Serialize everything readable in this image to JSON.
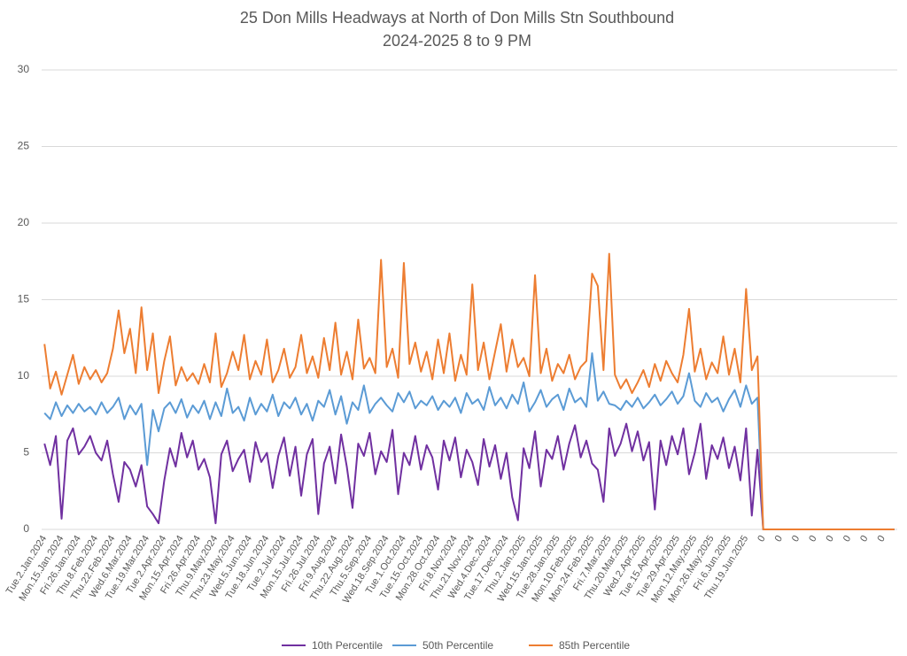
{
  "chart_data": {
    "type": "line",
    "title": "25 Don Mills Headways at North of Don Mills Stn Southbound",
    "subtitle": "2024-2025 8 to 9 PM",
    "categories": [
      "Tue.2.Jan.2024",
      null,
      null,
      "Mon.15.Jan.2024",
      null,
      null,
      "Fri.26.Jan.2024",
      null,
      null,
      "Thu.8.Feb.2024",
      null,
      null,
      "Thu.22.Feb.2024",
      null,
      null,
      "Wed.6.Mar.2024",
      null,
      null,
      "Tue.19.Mar.2024",
      null,
      null,
      "Tue.2.Apr.2024",
      null,
      null,
      "Mon.15.Apr.2024",
      null,
      null,
      "Fri.26.Apr.2024",
      null,
      null,
      "Thu.9.May.2024",
      null,
      null,
      "Thu.23.May.2024",
      null,
      null,
      "Wed.5.Jun.2024",
      null,
      null,
      "Tue.18.Jun.2024",
      null,
      null,
      "Tue.2.Jul.2024",
      null,
      null,
      "Mon.15.Jul.2024",
      null,
      null,
      "Fri.26.Jul.2024",
      null,
      null,
      "Fri.9.Aug.2024",
      null,
      null,
      "Thu.22.Aug.2024",
      null,
      null,
      "Thu.5.Sep.2024",
      null,
      null,
      "Wed.18.Sep.2024",
      null,
      null,
      "Tue.1.Oct.2024",
      null,
      null,
      "Tue.15.Oct.2024",
      null,
      null,
      "Mon.28.Oct.2024",
      null,
      null,
      "Fri.8.Nov.2024",
      null,
      null,
      "Thu.21.Nov.2024",
      null,
      null,
      "Wed.4.Dec.2024",
      null,
      null,
      "Tue.17.Dec.2024",
      null,
      null,
      "Thu.2.Jan.2025",
      null,
      null,
      "Wed.15.Jan.2025",
      null,
      null,
      "Tue.28.Jan.2025",
      null,
      null,
      "Mon.10.Feb.2025",
      null,
      null,
      "Mon.24.Feb.2025",
      null,
      null,
      "Fri.7.Mar.2025",
      null,
      null,
      "Thu.20.Mar.2025",
      null,
      null,
      "Wed.2.Apr.2025",
      null,
      null,
      "Tue.15.Apr.2025",
      null,
      null,
      "Tue.29.Apr.2025",
      null,
      null,
      "Mon.12.May.2025",
      null,
      null,
      "Mon.26.May.2025",
      null,
      null,
      "Fri.6.Jun.2025",
      null,
      null,
      "Thu.19.Jun.2025",
      null,
      null,
      "0",
      null,
      null,
      "0",
      null,
      null,
      "0",
      null,
      null,
      "0",
      null,
      null,
      "0",
      null,
      null,
      "0",
      null,
      null,
      "0",
      null,
      null,
      "0",
      null,
      null
    ],
    "series": [
      {
        "name": "10th Percentile",
        "color": "#7030a0",
        "values": [
          5.6,
          4.2,
          6.1,
          0.7,
          5.8,
          6.6,
          4.9,
          5.4,
          6.1,
          5.0,
          4.5,
          5.8,
          3.6,
          1.8,
          4.4,
          3.9,
          2.8,
          4.2,
          1.5,
          1.0,
          0.4,
          3.2,
          5.3,
          4.1,
          6.3,
          4.7,
          5.8,
          3.9,
          4.6,
          3.4,
          0.4,
          4.9,
          5.8,
          3.8,
          4.6,
          5.2,
          3.1,
          5.7,
          4.4,
          5.0,
          2.7,
          4.8,
          6.0,
          3.5,
          5.4,
          2.2,
          4.9,
          5.9,
          1.0,
          4.3,
          5.4,
          3.0,
          6.2,
          4.1,
          1.4,
          5.6,
          4.8,
          6.3,
          3.6,
          5.1,
          4.4,
          6.5,
          2.3,
          5.0,
          4.2,
          6.1,
          3.9,
          5.5,
          4.7,
          2.6,
          5.8,
          4.5,
          6.0,
          3.4,
          5.2,
          4.4,
          2.9,
          5.9,
          4.1,
          5.5,
          3.3,
          5.0,
          2.1,
          0.6,
          5.3,
          4.0,
          6.4,
          2.8,
          5.2,
          4.6,
          6.1,
          3.9,
          5.6,
          6.8,
          4.7,
          5.8,
          4.3,
          3.9,
          1.8,
          6.6,
          4.8,
          5.6,
          6.9,
          5.1,
          6.4,
          4.5,
          5.7,
          1.3,
          5.8,
          4.2,
          6.1,
          4.9,
          6.6,
          3.6,
          5.0,
          6.9,
          3.3,
          5.5,
          4.6,
          6.0,
          4.0,
          5.4,
          3.2,
          6.6,
          0.9,
          5.2,
          0,
          0,
          0,
          0,
          0,
          0,
          0,
          0,
          0,
          0,
          0,
          0,
          0,
          0,
          0,
          0,
          0,
          0,
          0,
          0,
          0,
          0,
          0,
          0
        ]
      },
      {
        "name": "50th Percentile",
        "color": "#5b9bd5",
        "values": [
          7.6,
          7.2,
          8.3,
          7.4,
          8.1,
          7.6,
          8.2,
          7.7,
          8.0,
          7.5,
          8.3,
          7.6,
          8.0,
          8.6,
          7.2,
          8.1,
          7.5,
          8.2,
          4.2,
          7.8,
          6.4,
          7.9,
          8.3,
          7.6,
          8.5,
          7.3,
          8.1,
          7.6,
          8.4,
          7.2,
          8.3,
          7.4,
          9.2,
          7.6,
          8.0,
          7.1,
          8.6,
          7.5,
          8.2,
          7.7,
          8.8,
          7.4,
          8.3,
          7.9,
          8.6,
          7.5,
          8.2,
          7.1,
          8.4,
          8.0,
          9.1,
          7.5,
          8.7,
          6.9,
          8.3,
          7.8,
          9.4,
          7.6,
          8.2,
          8.6,
          8.1,
          7.7,
          8.9,
          8.3,
          9.0,
          7.9,
          8.4,
          8.1,
          8.7,
          7.8,
          8.4,
          8.0,
          8.6,
          7.6,
          8.9,
          8.2,
          8.5,
          7.8,
          9.3,
          8.1,
          8.6,
          7.9,
          8.8,
          8.2,
          9.6,
          7.7,
          8.3,
          9.1,
          8.0,
          8.5,
          8.8,
          7.8,
          9.2,
          8.3,
          8.6,
          8.0,
          11.5,
          8.4,
          9.0,
          8.2,
          8.1,
          7.8,
          8.4,
          8.0,
          8.6,
          7.9,
          8.3,
          8.8,
          8.1,
          8.5,
          9.0,
          8.2,
          8.7,
          10.2,
          8.4,
          8.0,
          8.9,
          8.3,
          8.6,
          7.7,
          8.5,
          9.1,
          8.0,
          9.4,
          8.2,
          8.6,
          0,
          0,
          0,
          0,
          0,
          0,
          0,
          0,
          0,
          0,
          0,
          0,
          0,
          0,
          0,
          0,
          0,
          0,
          0,
          0,
          0,
          0,
          0,
          0
        ]
      },
      {
        "name": "85th Percentile",
        "color": "#ed7d31",
        "values": [
          12.1,
          9.2,
          10.3,
          8.8,
          10.1,
          11.4,
          9.5,
          10.6,
          9.8,
          10.4,
          9.6,
          10.2,
          11.8,
          14.3,
          11.5,
          13.1,
          10.2,
          14.5,
          10.4,
          12.8,
          8.9,
          11.0,
          12.6,
          9.4,
          10.6,
          9.7,
          10.2,
          9.5,
          10.8,
          9.6,
          12.8,
          9.3,
          10.2,
          11.6,
          10.4,
          12.7,
          9.8,
          11.0,
          10.1,
          12.4,
          9.6,
          10.4,
          11.8,
          9.9,
          10.6,
          12.7,
          10.2,
          11.3,
          9.9,
          12.5,
          10.4,
          13.5,
          10.1,
          11.6,
          9.8,
          13.7,
          10.5,
          11.2,
          10.2,
          17.6,
          10.6,
          11.8,
          9.9,
          17.4,
          10.8,
          12.2,
          10.3,
          11.6,
          9.8,
          12.4,
          10.2,
          12.8,
          9.7,
          11.4,
          10.1,
          16.0,
          10.4,
          12.2,
          9.8,
          11.6,
          13.4,
          10.3,
          12.4,
          10.6,
          11.2,
          10.0,
          16.6,
          10.2,
          11.8,
          9.7,
          10.8,
          10.2,
          11.4,
          9.8,
          10.6,
          11.0,
          16.7,
          15.9,
          10.4,
          18.0,
          10.1,
          9.2,
          9.8,
          8.9,
          9.6,
          10.4,
          9.3,
          10.8,
          9.7,
          11.0,
          10.2,
          9.6,
          11.4,
          14.4,
          10.3,
          11.8,
          9.8,
          10.9,
          10.2,
          12.6,
          10.1,
          11.8,
          9.6,
          15.7,
          10.4,
          11.3,
          0,
          0,
          0,
          0,
          0,
          0,
          0,
          0,
          0,
          0,
          0,
          0,
          0,
          0,
          0,
          0,
          0,
          0,
          0,
          0,
          0,
          0,
          0,
          0
        ]
      }
    ],
    "ylim": [
      0,
      30
    ],
    "yticks": [
      0,
      5,
      10,
      15,
      20,
      25,
      30
    ],
    "grid": true,
    "legend": "bottom"
  }
}
